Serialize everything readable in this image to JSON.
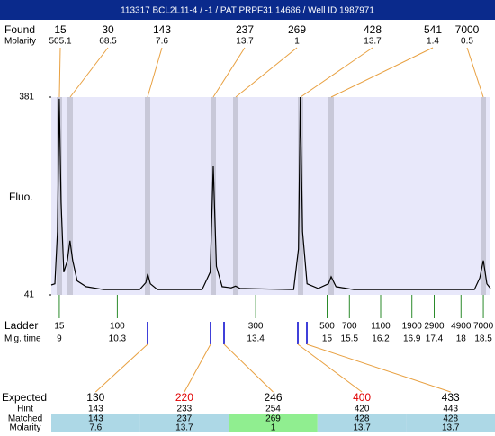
{
  "header": {
    "title": "113317  BCL2L11-4 / -1 / PAT PRPF31 14686 / Well ID 1987971"
  },
  "found": {
    "label": "Found",
    "molarity_label": "Molarity",
    "sizes": [
      15,
      30,
      143,
      237,
      269,
      428,
      541,
      7000
    ],
    "molarity": [
      505.1,
      68.5,
      7.6,
      13.7,
      1,
      13.7,
      1.4,
      0.5
    ]
  },
  "chart_data": {
    "type": "line",
    "y_label": "Fluo.",
    "ylim": [
      41,
      381
    ],
    "yticks": [
      41,
      381
    ],
    "xlim": [
      8.82,
      18.66
    ],
    "plot_color": "#e8e8fa",
    "band_color": "#c8c8d8",
    "x": [
      8.82,
      8.9,
      8.96,
      9.0,
      9.04,
      9.1,
      9.18,
      9.24,
      9.3,
      9.4,
      9.6,
      10.0,
      10.8,
      10.94,
      10.98,
      11.04,
      11.2,
      12.2,
      12.38,
      12.45,
      12.52,
      12.65,
      12.85,
      12.95,
      13.05,
      14.25,
      14.36,
      14.4,
      14.45,
      14.55,
      14.8,
      15.03,
      15.09,
      15.2,
      15.6,
      18.3,
      18.42,
      18.5,
      18.58,
      18.66
    ],
    "series": [
      {
        "color": "#000000",
        "values": [
          58,
          60,
          150,
          378,
          200,
          80,
          100,
          134,
          100,
          65,
          55,
          50,
          50,
          62,
          77,
          60,
          50,
          50,
          80,
          262,
          90,
          55,
          53,
          56,
          52,
          50,
          120,
          381,
          150,
          60,
          52,
          60,
          72,
          55,
          50,
          50,
          70,
          100,
          60,
          52
        ]
      }
    ]
  },
  "ladder": {
    "label": "Ladder",
    "time_label": "Mig. time",
    "sizes": [
      15,
      100,
      300,
      500,
      700,
      1100,
      1900,
      2900,
      4900,
      7000
    ],
    "times": [
      9,
      10.3,
      13.4,
      15,
      15.5,
      16.2,
      16.9,
      17.4,
      18,
      18.5
    ]
  },
  "table": {
    "labels": [
      "Expected",
      "Hint",
      "Matched",
      "Molarity"
    ],
    "expected": [
      130,
      220,
      246,
      400,
      433
    ],
    "expected_colors": [
      "#000000",
      "#e00000",
      "#000000",
      "#e00000",
      "#000000"
    ],
    "hint": [
      143,
      233,
      254,
      420,
      443
    ],
    "matched": [
      143,
      237,
      269,
      428,
      428
    ],
    "cell_colors": [
      "#add8e6",
      "#add8e6",
      "#90ee90",
      "#add8e6",
      "#add8e6"
    ],
    "molarity": [
      7.6,
      13.7,
      1,
      13.7,
      13.7
    ]
  }
}
